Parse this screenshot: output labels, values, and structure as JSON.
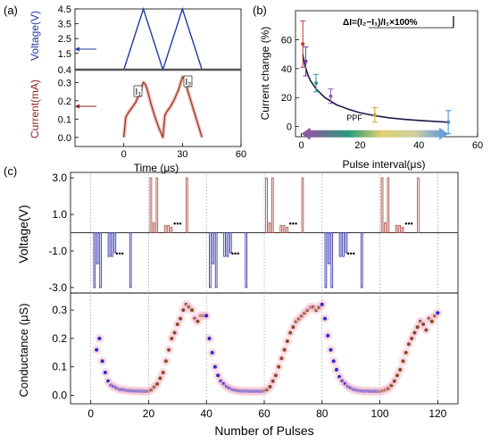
{
  "panels": {
    "a": {
      "tag": "(a)"
    },
    "b": {
      "tag": "(b)"
    },
    "c": {
      "tag": "(c)"
    }
  },
  "chart_data": [
    {
      "id": "a",
      "type": "line",
      "xlabel": "Time (μs)",
      "xticks": [
        "0",
        "30",
        "60"
      ],
      "xlim": [
        -25,
        60
      ],
      "top": {
        "ylabel": "Voltage(V)",
        "ylabel_color": "#1f3aa6",
        "yticks": [
          "0.4",
          "1.5",
          "2.5",
          "3.5",
          "4.5"
        ],
        "ylim": [
          0.4,
          4.5
        ],
        "series": [
          {
            "color": "#1f3aa6",
            "x": [
              -25,
              0,
              10,
              20,
              20,
              30,
              40,
              60
            ],
            "y": [
              0.4,
              0.4,
              4.5,
              0.4,
              0.4,
              4.5,
              0.4,
              0.4
            ]
          }
        ]
      },
      "bottom": {
        "ylabel": "Current(mA)",
        "ylabel_color": "#8b1e1e",
        "yticks": [
          "0.0",
          "0.1",
          "0.2",
          "0.3"
        ],
        "ylim": [
          -0.05,
          0.37
        ],
        "annotations": [
          "I",
          "1",
          "I",
          "2"
        ],
        "series": [
          {
            "color": "#8b3a2a",
            "x": [
              0,
              1,
              2,
              4,
              6,
              8,
              10,
              11,
              12,
              13,
              14,
              16,
              18,
              20,
              21,
              22,
              24,
              26,
              28,
              30,
              31,
              32,
              34,
              36,
              38,
              40
            ],
            "y": [
              0.0,
              0.11,
              0.13,
              0.16,
              0.19,
              0.24,
              0.3,
              0.29,
              0.26,
              0.22,
              0.18,
              0.11,
              0.05,
              0.0,
              0.12,
              0.14,
              0.17,
              0.21,
              0.26,
              0.33,
              0.32,
              0.28,
              0.21,
              0.14,
              0.07,
              0.0
            ]
          }
        ]
      }
    },
    {
      "id": "b",
      "type": "line",
      "xlabel": "Pulse interval(μs)",
      "ylabel": "Current change (%)",
      "xticks": [
        "0",
        "20",
        "40",
        "60"
      ],
      "yticks": [
        "0",
        "20",
        "40",
        "60"
      ],
      "xlim": [
        -2,
        60
      ],
      "ylim": [
        -7,
        80
      ],
      "annotation_prefix": "ΔI=",
      "annotation_fraction": "(I₂−I₁)/I₁",
      "annotation_suffix": "×100%",
      "arrow_label": "PPF",
      "fit": {
        "x": [
          0.5,
          1,
          2,
          3,
          5,
          8,
          12,
          16,
          20,
          25,
          30,
          35,
          40,
          45,
          50
        ],
        "y": [
          50,
          44,
          37,
          32,
          26,
          20,
          15,
          12,
          9.5,
          7.5,
          6,
          5,
          4.2,
          3.6,
          3
        ]
      },
      "points": [
        {
          "x": 0.5,
          "y": 57,
          "err": 16,
          "color": "#c0392b"
        },
        {
          "x": 1.5,
          "y": 45,
          "err": 10,
          "color": "#7a3a9a"
        },
        {
          "x": 5,
          "y": 30,
          "err": 6,
          "color": "#2a9a8a"
        },
        {
          "x": 10,
          "y": 21,
          "err": 5,
          "color": "#9a5ab0"
        },
        {
          "x": 25,
          "y": 8,
          "err": 5,
          "color": "#c9a227"
        },
        {
          "x": 50,
          "y": 3,
          "err": 8,
          "color": "#3a8ad0"
        }
      ]
    },
    {
      "id": "c",
      "type": "scatter",
      "xlabel": "Number of Pulses",
      "xticks": [
        "0",
        "20",
        "40",
        "60",
        "80",
        "100",
        "120"
      ],
      "xlim": [
        -7,
        127
      ],
      "top": {
        "ylabel": "Voltage(V)",
        "yticks": [
          "3.0",
          "1.0",
          "-1.0",
          "-3.0"
        ],
        "ylim": [
          -3.3,
          3.3
        ],
        "ellipsis": "•••",
        "colors": {
          "positive": "#b0524a",
          "negative": "#3a3ab0"
        }
      },
      "bottom": {
        "ylabel": "Conductance (μS)",
        "yticks": [
          "0.0",
          "0.1",
          "0.2",
          "0.3"
        ],
        "ylim": [
          -0.03,
          0.36
        ],
        "colors": {
          "depression": "#2a2ad0",
          "potentiation": "#8b4a2a"
        },
        "x": [
          2,
          3,
          4,
          5,
          6,
          7,
          8,
          9,
          10,
          11,
          12,
          13,
          14,
          15,
          16,
          17,
          18,
          19,
          20,
          21,
          22,
          23,
          24,
          25,
          26,
          27,
          28,
          29,
          30,
          31,
          32,
          33,
          34,
          35,
          36,
          37,
          38,
          39,
          40,
          41,
          42,
          43,
          44,
          45,
          46,
          47,
          48,
          49,
          50,
          51,
          52,
          53,
          54,
          55,
          56,
          57,
          58,
          59,
          60,
          61,
          62,
          63,
          64,
          65,
          66,
          67,
          68,
          69,
          70,
          71,
          72,
          73,
          74,
          75,
          76,
          77,
          78,
          79,
          80,
          81,
          82,
          83,
          84,
          85,
          86,
          87,
          88,
          89,
          90,
          91,
          92,
          93,
          94,
          95,
          96,
          97,
          98,
          99,
          100,
          101,
          102,
          103,
          104,
          105,
          106,
          107,
          108,
          109,
          110,
          111,
          112,
          113,
          114,
          115,
          116,
          117,
          118,
          119,
          120
        ],
        "y": [
          0.16,
          0.2,
          0.12,
          0.08,
          0.05,
          0.035,
          0.03,
          0.025,
          0.02,
          0.02,
          0.018,
          0.016,
          0.016,
          0.015,
          0.015,
          0.015,
          0.014,
          0.014,
          0.015,
          0.02,
          0.03,
          0.04,
          0.06,
          0.08,
          0.12,
          0.16,
          0.2,
          0.22,
          0.25,
          0.27,
          0.3,
          0.32,
          0.31,
          0.3,
          0.27,
          0.26,
          0.28,
          0.28,
          0.28,
          0.2,
          0.15,
          0.1,
          0.07,
          0.05,
          0.04,
          0.03,
          0.025,
          0.02,
          0.018,
          0.016,
          0.015,
          0.015,
          0.015,
          0.014,
          0.014,
          0.014,
          0.014,
          0.014,
          0.016,
          0.02,
          0.03,
          0.05,
          0.07,
          0.1,
          0.13,
          0.16,
          0.19,
          0.22,
          0.24,
          0.26,
          0.27,
          0.28,
          0.29,
          0.3,
          0.31,
          0.31,
          0.3,
          0.31,
          0.32,
          0.27,
          0.21,
          0.16,
          0.12,
          0.09,
          0.065,
          0.05,
          0.04,
          0.03,
          0.025,
          0.02,
          0.018,
          0.016,
          0.015,
          0.015,
          0.015,
          0.014,
          0.014,
          0.014,
          0.014,
          0.016,
          0.02,
          0.025,
          0.035,
          0.05,
          0.07,
          0.09,
          0.12,
          0.15,
          0.18,
          0.2,
          0.22,
          0.24,
          0.26,
          0.25,
          0.23,
          0.27,
          0.26,
          0.28,
          0.29
        ]
      }
    }
  ]
}
